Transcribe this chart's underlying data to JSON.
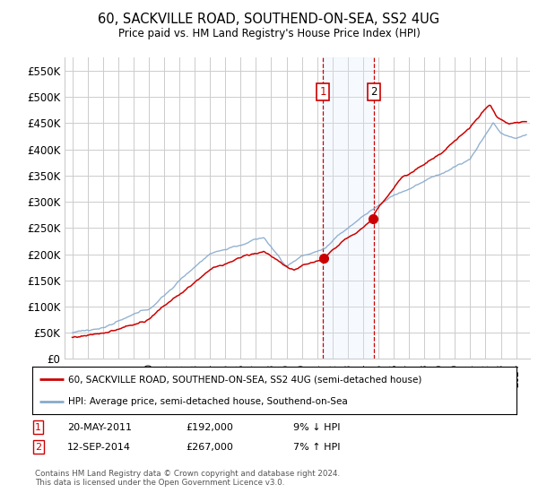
{
  "title": "60, SACKVILLE ROAD, SOUTHEND-ON-SEA, SS2 4UG",
  "subtitle": "Price paid vs. HM Land Registry's House Price Index (HPI)",
  "ylabel_ticks": [
    "£0",
    "£50K",
    "£100K",
    "£150K",
    "£200K",
    "£250K",
    "£300K",
    "£350K",
    "£400K",
    "£450K",
    "£500K",
    "£550K"
  ],
  "ytick_values": [
    0,
    50000,
    100000,
    150000,
    200000,
    250000,
    300000,
    350000,
    400000,
    450000,
    500000,
    550000
  ],
  "ylim": [
    0,
    575000
  ],
  "legend_line1": "60, SACKVILLE ROAD, SOUTHEND-ON-SEA, SS2 4UG (semi-detached house)",
  "legend_line2": "HPI: Average price, semi-detached house, Southend-on-Sea",
  "transaction1_date": "20-MAY-2011",
  "transaction1_price": 192000,
  "transaction1_hpi": "9% ↓ HPI",
  "transaction2_date": "12-SEP-2014",
  "transaction2_price": 267000,
  "transaction2_hpi": "7% ↑ HPI",
  "footnote": "Contains HM Land Registry data © Crown copyright and database right 2024.\nThis data is licensed under the Open Government Licence v3.0.",
  "red_color": "#cc0000",
  "blue_color": "#88aacc",
  "shading_color": "#ddeeff",
  "background_color": "#ffffff",
  "grid_color": "#cccccc"
}
